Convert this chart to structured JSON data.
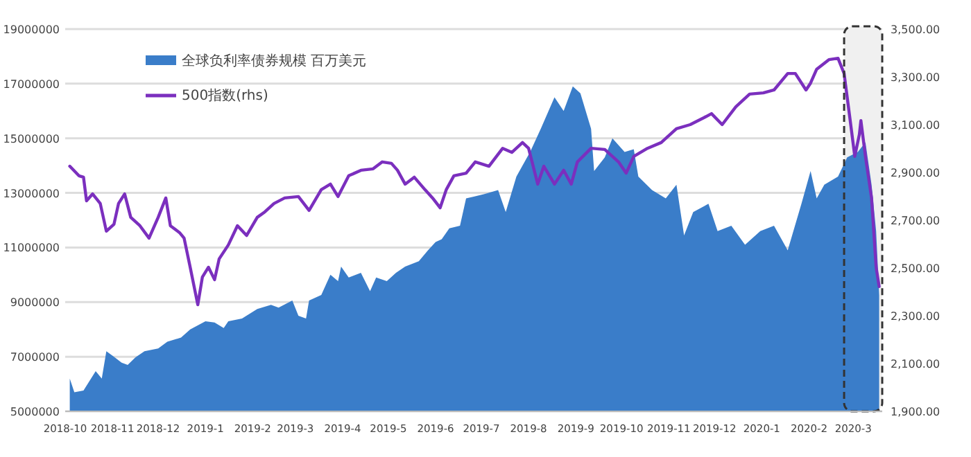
{
  "chart_data": {
    "type": "area",
    "xlim": [
      "2018-10-01",
      "2020-03-20"
    ],
    "xticks": [
      "2018-10",
      "2018-11",
      "2018-12",
      "2019-1",
      "2019-2",
      "2019-3",
      "2019-4",
      "2019-5",
      "2019-6",
      "2019-7",
      "2019-8",
      "2019-9",
      "2019-10",
      "2019-11",
      "2019-12",
      "2020-1",
      "2020-2",
      "2020-3"
    ],
    "ylim": [
      5000000,
      19000000
    ],
    "yticks": [
      5000000,
      7000000,
      9000000,
      11000000,
      13000000,
      15000000,
      17000000,
      19000000
    ],
    "y2lim": [
      1900,
      3500
    ],
    "y2ticks": [
      {
        "value": 1900,
        "label": "1,900.00"
      },
      {
        "value": 2100,
        "label": "2,100.00"
      },
      {
        "value": 2300,
        "label": "2,300.00"
      },
      {
        "value": 2500,
        "label": "2,500.00"
      },
      {
        "value": 2700,
        "label": "2,700.00"
      },
      {
        "value": 2900,
        "label": "2,900.00"
      },
      {
        "value": 3100,
        "label": "3,100.00"
      },
      {
        "value": 3300,
        "label": "3,300.00"
      },
      {
        "value": 3500,
        "label": "3,500.00"
      }
    ],
    "grid": "y",
    "legend": "top left",
    "bands": [
      {
        "axis": "x",
        "from": "2020-02-24",
        "to": "2020-03-20",
        "color": "#f0f0f0"
      }
    ],
    "series": [
      {
        "name": "全球负利率债券规模 百万美元",
        "color": "#3a7dc9",
        "x": [
          "2018-10-04",
          "2018-10-07",
          "2018-10-13",
          "2018-10-21",
          "2018-10-25",
          "2018-10-28",
          "2018-11-02",
          "2018-11-07",
          "2018-11-11",
          "2018-11-16",
          "2018-11-22",
          "2018-12-01",
          "2018-12-07",
          "2018-12-16",
          "2018-12-22",
          "2019-01-01",
          "2019-01-07",
          "2019-01-13",
          "2019-01-16",
          "2019-01-25",
          "2019-02-04",
          "2019-02-13",
          "2019-02-18",
          "2019-02-27",
          "2019-03-03",
          "2019-03-08",
          "2019-03-10",
          "2019-03-18",
          "2019-03-24",
          "2019-03-29",
          "2019-03-31",
          "2019-04-05",
          "2019-04-13",
          "2019-04-19",
          "2019-04-23",
          "2019-04-30",
          "2019-05-06",
          "2019-05-12",
          "2019-05-21",
          "2019-05-27",
          "2019-06-01",
          "2019-06-05",
          "2019-06-10",
          "2019-06-17",
          "2019-06-21",
          "2019-06-26",
          "2019-07-03",
          "2019-07-12",
          "2019-07-17",
          "2019-07-24",
          "2019-08-02",
          "2019-08-09",
          "2019-08-18",
          "2019-08-24",
          "2019-08-30",
          "2019-09-04",
          "2019-09-11",
          "2019-09-13",
          "2019-09-20",
          "2019-09-25",
          "2019-10-03",
          "2019-10-09",
          "2019-10-12",
          "2019-10-21",
          "2019-10-30",
          "2019-11-06",
          "2019-11-11",
          "2019-11-17",
          "2019-11-27",
          "2019-12-03",
          "2019-12-12",
          "2019-12-21",
          "2019-12-31",
          "2020-01-09",
          "2020-01-18",
          "2020-01-27",
          "2020-02-02",
          "2020-02-06",
          "2020-02-11",
          "2020-02-20",
          "2020-02-26",
          "2020-03-04",
          "2020-03-09",
          "2020-03-13",
          "2020-03-16",
          "2020-03-18"
        ],
        "values": [
          6200000,
          5700000,
          5760000,
          6470000,
          6200000,
          7200000,
          7000000,
          6780000,
          6700000,
          6970000,
          7200000,
          7300000,
          7550000,
          7700000,
          8000000,
          8300000,
          8250000,
          8050000,
          8300000,
          8400000,
          8750000,
          8900000,
          8800000,
          9060000,
          8500000,
          8400000,
          9060000,
          9260000,
          10000000,
          9770000,
          10300000,
          9900000,
          10070000,
          9400000,
          9900000,
          9770000,
          10070000,
          10300000,
          10500000,
          10900000,
          11200000,
          11300000,
          11700000,
          11800000,
          12800000,
          12860000,
          12960000,
          13100000,
          12300000,
          13600000,
          14500000,
          15350000,
          16500000,
          16000000,
          16900000,
          16650000,
          15350000,
          13800000,
          14300000,
          15000000,
          14500000,
          14600000,
          13600000,
          13100000,
          12800000,
          13300000,
          11440000,
          12300000,
          12600000,
          11600000,
          11800000,
          11100000,
          11600000,
          11800000,
          10900000,
          12600000,
          13800000,
          12800000,
          13300000,
          13600000,
          14300000,
          14500000,
          14850000,
          13300000,
          11600000,
          9260000
        ]
      },
      {
        "name": "500指数(rhs)",
        "type": "line",
        "axis": "y2",
        "color": "#7b2fbe",
        "x": [
          "2018-10-04",
          "2018-10-10",
          "2018-10-13",
          "2018-10-15",
          "2018-10-19",
          "2018-10-24",
          "2018-10-28",
          "2018-11-02",
          "2018-11-05",
          "2018-11-09",
          "2018-11-13",
          "2018-11-19",
          "2018-11-25",
          "2018-12-01",
          "2018-12-06",
          "2018-12-09",
          "2018-12-15",
          "2018-12-18",
          "2018-12-22",
          "2018-12-27",
          "2018-12-30",
          "2019-01-03",
          "2019-01-07",
          "2019-01-10",
          "2019-01-16",
          "2019-01-22",
          "2019-01-28",
          "2019-02-04",
          "2019-02-09",
          "2019-02-15",
          "2019-02-22",
          "2019-03-03",
          "2019-03-10",
          "2019-03-18",
          "2019-03-24",
          "2019-03-29",
          "2019-04-05",
          "2019-04-13",
          "2019-04-21",
          "2019-04-27",
          "2019-05-03",
          "2019-05-07",
          "2019-05-12",
          "2019-05-18",
          "2019-05-25",
          "2019-05-30",
          "2019-06-04",
          "2019-06-08",
          "2019-06-13",
          "2019-06-21",
          "2019-06-27",
          "2019-06-30",
          "2019-07-06",
          "2019-07-15",
          "2019-07-21",
          "2019-07-28",
          "2019-08-01",
          "2019-08-07",
          "2019-08-11",
          "2019-08-18",
          "2019-08-24",
          "2019-08-29",
          "2019-09-02",
          "2019-09-11",
          "2019-09-20",
          "2019-09-29",
          "2019-10-04",
          "2019-10-09",
          "2019-10-18",
          "2019-10-27",
          "2019-11-06",
          "2019-11-15",
          "2019-11-24",
          "2019-11-29",
          "2019-12-06",
          "2019-12-15",
          "2019-12-24",
          "2020-01-02",
          "2020-01-09",
          "2020-01-18",
          "2020-01-23",
          "2020-01-30",
          "2020-02-02",
          "2020-02-06",
          "2020-02-14",
          "2020-02-20",
          "2020-02-24",
          "2020-02-28",
          "2020-03-02",
          "2020-03-05",
          "2020-03-06",
          "2020-03-09",
          "2020-03-13",
          "2020-03-16",
          "2020-03-18"
        ],
        "values": [
          2926,
          2886,
          2880,
          2781,
          2810,
          2770,
          2654,
          2683,
          2770,
          2810,
          2712,
          2677,
          2625,
          2712,
          2793,
          2677,
          2648,
          2625,
          2503,
          2346,
          2462,
          2503,
          2451,
          2538,
          2596,
          2677,
          2636,
          2712,
          2735,
          2770,
          2793,
          2799,
          2741,
          2828,
          2851,
          2799,
          2886,
          2909,
          2915,
          2944,
          2938,
          2909,
          2851,
          2880,
          2828,
          2793,
          2752,
          2828,
          2886,
          2897,
          2944,
          2938,
          2926,
          3001,
          2984,
          3025,
          3001,
          2851,
          2926,
          2851,
          2909,
          2851,
          2944,
          3001,
          2996,
          2944,
          2897,
          2967,
          3001,
          3025,
          3083,
          3100,
          3129,
          3146,
          3100,
          3175,
          3228,
          3233,
          3245,
          3314,
          3314,
          3245,
          3274,
          3332,
          3372,
          3378,
          3314,
          3117,
          2967,
          3059,
          3117,
          2967,
          2793,
          2503,
          2422
        ]
      }
    ]
  }
}
